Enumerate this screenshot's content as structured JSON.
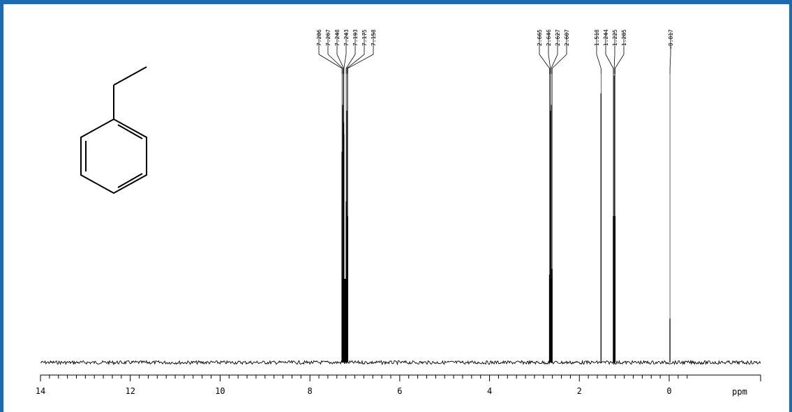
{
  "chart_data": {
    "type": "line",
    "spectrum": "1H NMR",
    "xlabel": "ppm",
    "xlim": [
      14,
      -0.4
    ],
    "x_reversed": true,
    "xticks_major": [
      14,
      12,
      10,
      8,
      6,
      4,
      2,
      0
    ],
    "xtick_labels": [
      "14",
      "12",
      "10",
      "8",
      "6",
      "4",
      "2",
      "0"
    ],
    "minor_tick_step": 0.2,
    "grid": false,
    "legend": "none",
    "line_color": "#000000",
    "frame_color": "#1a6ab4",
    "structure": "ethylbenzene skeletal formula (benzene ring with ethyl group)",
    "peaks": [
      {
        "ppm": 7.286,
        "height": 0.72
      },
      {
        "ppm": 7.267,
        "height": 0.88
      },
      {
        "ppm": 7.248,
        "height": 0.82
      },
      {
        "ppm": 7.243,
        "height": 0.78
      },
      {
        "ppm": 7.193,
        "height": 0.55
      },
      {
        "ppm": 7.175,
        "height": 0.86
      },
      {
        "ppm": 7.158,
        "height": 0.5
      },
      {
        "ppm": 2.665,
        "height": 0.3
      },
      {
        "ppm": 2.646,
        "height": 0.86
      },
      {
        "ppm": 2.627,
        "height": 0.88
      },
      {
        "ppm": 2.607,
        "height": 0.32
      },
      {
        "ppm": 1.518,
        "height": 0.92
      },
      {
        "ppm": 1.244,
        "height": 0.5
      },
      {
        "ppm": 1.225,
        "height": 0.98
      },
      {
        "ppm": 1.205,
        "height": 0.5
      },
      {
        "ppm": -0.017,
        "height": 0.15
      }
    ],
    "peak_labels": [
      "7.286",
      "7.267",
      "7.248",
      "7.243",
      "7.193",
      "7.175",
      "7.158",
      "2.665",
      "2.646",
      "2.627",
      "2.607",
      "1.518",
      "1.244",
      "1.225",
      "1.205",
      "-0.017"
    ]
  }
}
